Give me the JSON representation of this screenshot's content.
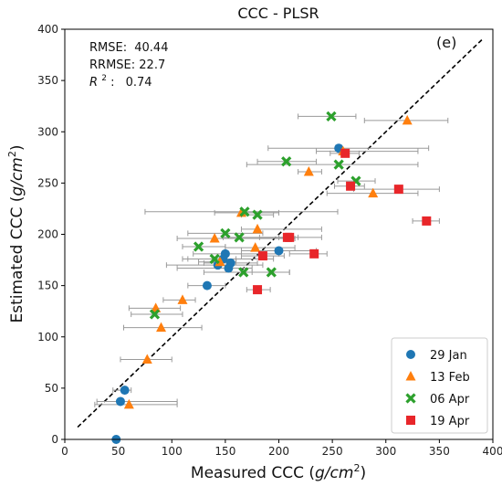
{
  "chart_data": {
    "type": "scatter",
    "title": "CCC - PLSR",
    "xlabel_prefix": "Measured CCC (",
    "xlabel_unit": "g/cm",
    "ylabel_prefix": "Estimated CCC (",
    "ylabel_unit": "g/cm",
    "label_close": ")",
    "unit_power": "2",
    "xlim": [
      0,
      400
    ],
    "ylim": [
      0,
      400
    ],
    "xticks": [
      "0",
      "50",
      "100",
      "150",
      "200",
      "250",
      "300",
      "350",
      "400"
    ],
    "yticks": [
      "0",
      "50",
      "100",
      "150",
      "200",
      "250",
      "300",
      "350",
      "400"
    ],
    "panel_label": "(e)",
    "stats": {
      "rmse_label": "RMSE:",
      "rmse": "40.44",
      "rrmse_label": "RRMSE:",
      "rrmse": "22.7",
      "r2_letter": "R",
      "r2_power": "2",
      "r2_colon": ":",
      "r2": "0.74"
    },
    "fit_line": {
      "x": [
        12,
        390
      ],
      "y": [
        12,
        390
      ]
    },
    "legend_position": "bottom-right",
    "series": [
      {
        "name": "29 Jan",
        "marker": "circle",
        "color": "#1f77b4",
        "points": [
          {
            "x": 48,
            "y": 0,
            "xerr": [
              48,
              48
            ]
          },
          {
            "x": 52,
            "y": 37,
            "xerr": [
              30,
              105
            ]
          },
          {
            "x": 56,
            "y": 48,
            "xerr": [
              45,
              62
            ]
          },
          {
            "x": 133,
            "y": 150,
            "xerr": [
              115,
              150
            ]
          },
          {
            "x": 143,
            "y": 170,
            "xerr": [
              95,
              185
            ]
          },
          {
            "x": 148,
            "y": 176,
            "xerr": [
              110,
              195
            ]
          },
          {
            "x": 150,
            "y": 181,
            "xerr": [
              120,
              200
            ]
          },
          {
            "x": 153,
            "y": 167,
            "xerr": [
              105,
              175
            ]
          },
          {
            "x": 155,
            "y": 172,
            "xerr": [
              130,
              180
            ]
          },
          {
            "x": 200,
            "y": 184,
            "xerr": [
              165,
              235
            ]
          },
          {
            "x": 256,
            "y": 284,
            "xerr": [
              190,
              340
            ]
          }
        ]
      },
      {
        "name": "13 Feb",
        "marker": "triangle",
        "color": "#ff7f0e",
        "points": [
          {
            "x": 60,
            "y": 34,
            "xerr": [
              28,
              105
            ]
          },
          {
            "x": 77,
            "y": 78,
            "xerr": [
              52,
              100
            ]
          },
          {
            "x": 85,
            "y": 128,
            "xerr": [
              60,
              108
            ]
          },
          {
            "x": 90,
            "y": 109,
            "xerr": [
              55,
              128
            ]
          },
          {
            "x": 110,
            "y": 136,
            "xerr": [
              92,
              122
            ]
          },
          {
            "x": 140,
            "y": 196,
            "xerr": [
              105,
              215
            ]
          },
          {
            "x": 145,
            "y": 173,
            "xerr": [
              125,
              160
            ]
          },
          {
            "x": 165,
            "y": 221,
            "xerr": [
              140,
              200
            ]
          },
          {
            "x": 178,
            "y": 187,
            "xerr": [
              150,
              215
            ]
          },
          {
            "x": 180,
            "y": 205,
            "xerr": [
              165,
              240
            ]
          },
          {
            "x": 228,
            "y": 261,
            "xerr": [
              218,
              240
            ]
          },
          {
            "x": 260,
            "y": 281,
            "xerr": [
              235,
              330
            ]
          },
          {
            "x": 288,
            "y": 240,
            "xerr": [
              245,
              330
            ]
          },
          {
            "x": 320,
            "y": 311,
            "xerr": [
              280,
              358
            ]
          }
        ]
      },
      {
        "name": "06 Apr",
        "marker": "x",
        "color": "#2ca02c",
        "points": [
          {
            "x": 84,
            "y": 122,
            "xerr": [
              62,
              110
            ]
          },
          {
            "x": 125,
            "y": 188,
            "xerr": [
              110,
              150
            ]
          },
          {
            "x": 140,
            "y": 176,
            "xerr": [
              115,
              160
            ]
          },
          {
            "x": 150,
            "y": 201,
            "xerr": [
              115,
              185
            ]
          },
          {
            "x": 163,
            "y": 197,
            "xerr": [
              148,
              205
            ]
          },
          {
            "x": 167,
            "y": 163,
            "xerr": [
              130,
              210
            ]
          },
          {
            "x": 168,
            "y": 222,
            "xerr": [
              75,
              255
            ]
          },
          {
            "x": 180,
            "y": 219,
            "xerr": [
              165,
              195
            ]
          },
          {
            "x": 193,
            "y": 163,
            "xerr": [
              175,
              210
            ]
          },
          {
            "x": 207,
            "y": 271,
            "xerr": [
              180,
              235
            ]
          },
          {
            "x": 256,
            "y": 268,
            "xerr": [
              170,
              330
            ]
          },
          {
            "x": 272,
            "y": 252,
            "xerr": [
              255,
              290
            ]
          },
          {
            "x": 249,
            "y": 315,
            "xerr": [
              218,
              272
            ]
          }
        ]
      },
      {
        "name": "19 Apr",
        "marker": "square",
        "color": "#e8262a",
        "points": [
          {
            "x": 180,
            "y": 146,
            "xerr": [
              170,
              192
            ]
          },
          {
            "x": 185,
            "y": 179,
            "xerr": [
              165,
              205
            ]
          },
          {
            "x": 210,
            "y": 197,
            "xerr": [
              182,
              240
            ]
          },
          {
            "x": 208,
            "y": 197,
            "xerr": [
              200,
              218
            ]
          },
          {
            "x": 233,
            "y": 181,
            "xerr": [
              210,
              245
            ]
          },
          {
            "x": 267,
            "y": 247,
            "xerr": [
              252,
              280
            ]
          },
          {
            "x": 262,
            "y": 279,
            "xerr": [
              248,
              275
            ]
          },
          {
            "x": 312,
            "y": 244,
            "xerr": [
              270,
              350
            ]
          },
          {
            "x": 338,
            "y": 213,
            "xerr": [
              325,
              350
            ]
          }
        ]
      }
    ]
  }
}
